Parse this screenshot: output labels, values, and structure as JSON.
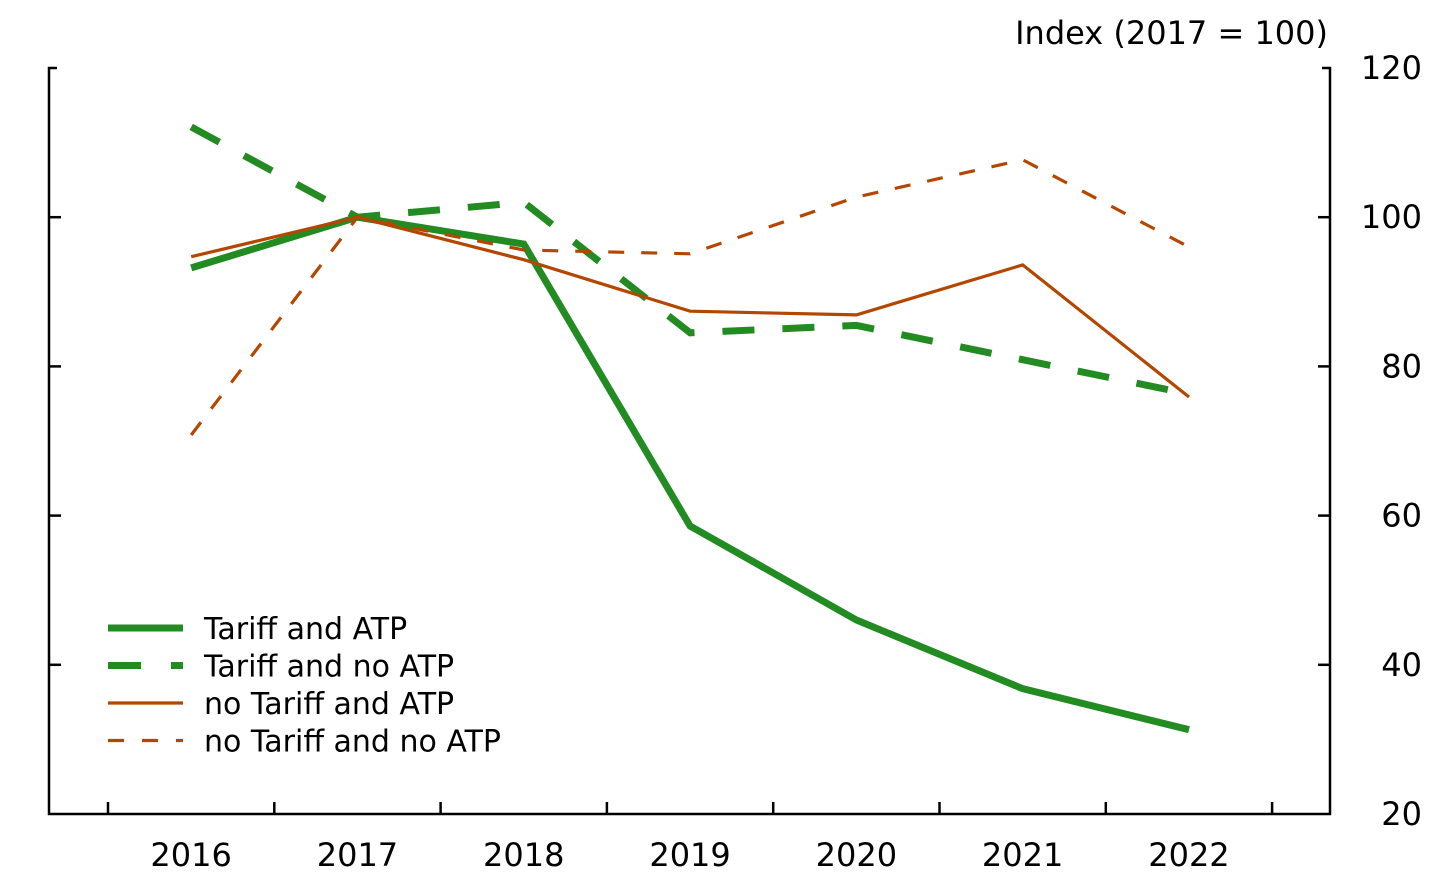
{
  "chart_data": {
    "type": "line",
    "title": "",
    "xlabel": "",
    "ylabel": "Index (2017 = 100)",
    "y_axis_side": "right",
    "ylim": [
      20,
      120
    ],
    "yticks": [
      20,
      40,
      60,
      80,
      100,
      120
    ],
    "grid": false,
    "legend_position": "bottom-left",
    "categories": [
      "2016",
      "2017",
      "2018",
      "2019",
      "2020",
      "2021",
      "2022"
    ],
    "series": [
      {
        "name": "Tariff and ATP",
        "color": "#228b22",
        "style": "solid",
        "weight": "thick",
        "values": [
          93.2,
          100.0,
          96.4,
          58.6,
          46.0,
          36.8,
          31.3
        ]
      },
      {
        "name": "Tariff and no ATP",
        "color": "#228b22",
        "style": "dashed",
        "weight": "thick",
        "values": [
          112.1,
          100.0,
          102.0,
          84.5,
          85.5,
          80.9,
          76.3
        ]
      },
      {
        "name": "no Tariff and ATP",
        "color": "#b34700",
        "style": "solid",
        "weight": "thin",
        "values": [
          94.7,
          100.0,
          94.3,
          87.4,
          86.9,
          93.6,
          75.9
        ]
      },
      {
        "name": "no Tariff and no ATP",
        "color": "#b34700",
        "style": "dashed",
        "weight": "thin",
        "values": [
          70.8,
          100.0,
          95.6,
          95.1,
          102.7,
          107.7,
          96.0
        ]
      }
    ]
  }
}
